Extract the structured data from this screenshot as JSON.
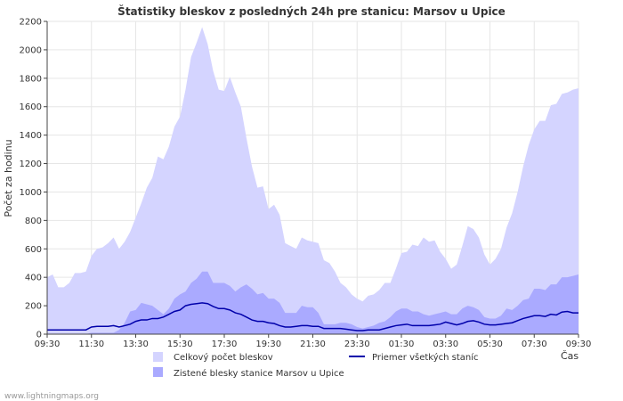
{
  "chart_data": {
    "type": "area",
    "title": "Štatistiky bleskov z posledných 24h pre stanicu: Marsov u Upice",
    "ylabel": "Počet za hodinu",
    "xlabel": "Čas",
    "ylim": [
      0,
      2200
    ],
    "yticks": [
      0,
      200,
      400,
      600,
      800,
      1000,
      1200,
      1400,
      1600,
      1800,
      2000,
      2200
    ],
    "xticks": [
      "09:30",
      "11:30",
      "13:30",
      "15:30",
      "17:30",
      "19:30",
      "21:30",
      "23:30",
      "01:30",
      "03:30",
      "05:30",
      "07:30",
      "09:30"
    ],
    "x_hours": [
      0,
      0.25,
      0.5,
      0.75,
      1,
      1.25,
      1.5,
      1.75,
      2,
      2.25,
      2.5,
      2.75,
      3,
      3.25,
      3.5,
      3.75,
      4,
      4.25,
      4.5,
      4.75,
      5,
      5.25,
      5.5,
      5.75,
      6,
      6.25,
      6.5,
      6.75,
      7,
      7.25,
      7.5,
      7.75,
      8,
      8.25,
      8.5,
      8.75,
      9,
      9.25,
      9.5,
      9.75,
      10,
      10.25,
      10.5,
      10.75,
      11,
      11.25,
      11.5,
      11.75,
      12,
      12.25,
      12.5,
      12.75,
      13,
      13.25,
      13.5,
      13.75,
      14,
      14.25,
      14.5,
      14.75,
      15,
      15.25,
      15.5,
      15.75,
      16,
      16.25,
      16.5,
      16.75,
      17,
      17.25,
      17.5,
      17.75,
      18,
      18.25,
      18.5,
      18.75,
      19,
      19.25,
      19.5,
      19.75,
      20,
      20.25,
      20.5,
      20.75,
      21,
      21.25,
      21.5,
      21.75,
      22,
      22.25,
      22.5,
      22.75,
      23,
      23.25,
      23.5,
      23.75,
      24
    ],
    "series": [
      {
        "name": "Celkový počet bleskov",
        "kind": "area",
        "color": "#d4d4ff",
        "values": [
          400,
          420,
          330,
          330,
          360,
          430,
          430,
          440,
          550,
          600,
          610,
          640,
          680,
          600,
          650,
          720,
          820,
          920,
          1030,
          1100,
          1250,
          1230,
          1320,
          1460,
          1530,
          1720,
          1950,
          2050,
          2160,
          2040,
          1850,
          1720,
          1710,
          1810,
          1700,
          1600,
          1380,
          1180,
          1030,
          1040,
          880,
          910,
          840,
          640,
          620,
          600,
          680,
          660,
          650,
          640,
          520,
          500,
          440,
          360,
          330,
          280,
          250,
          230,
          270,
          280,
          310,
          360,
          360,
          460,
          570,
          580,
          630,
          620,
          680,
          650,
          660,
          580,
          530,
          460,
          490,
          620,
          760,
          740,
          680,
          560,
          490,
          530,
          600,
          750,
          850,
          1000,
          1180,
          1330,
          1440,
          1500,
          1500,
          1610,
          1620,
          1690,
          1700,
          1720,
          1730
        ]
      },
      {
        "name": "Zistené blesky stanice Marsov u Upice",
        "kind": "area",
        "color": "#aaaaff",
        "values": [
          0,
          0,
          0,
          0,
          0,
          0,
          0,
          0,
          10,
          10,
          10,
          10,
          10,
          30,
          80,
          160,
          170,
          220,
          210,
          200,
          170,
          140,
          180,
          250,
          280,
          300,
          360,
          390,
          440,
          440,
          360,
          360,
          360,
          340,
          300,
          330,
          350,
          320,
          280,
          290,
          250,
          250,
          220,
          150,
          150,
          150,
          200,
          190,
          190,
          150,
          70,
          70,
          70,
          80,
          80,
          70,
          50,
          40,
          50,
          60,
          80,
          90,
          120,
          160,
          180,
          180,
          160,
          160,
          140,
          130,
          140,
          150,
          160,
          140,
          140,
          180,
          200,
          190,
          170,
          120,
          110,
          110,
          130,
          180,
          170,
          200,
          240,
          250,
          320,
          320,
          310,
          350,
          350,
          400,
          400,
          410,
          420
        ]
      },
      {
        "name": "Priemer všetkých staníc",
        "kind": "line",
        "color": "#0000aa",
        "values": [
          30,
          30,
          30,
          30,
          30,
          30,
          30,
          30,
          50,
          55,
          55,
          55,
          60,
          50,
          60,
          70,
          90,
          100,
          100,
          110,
          110,
          120,
          140,
          160,
          170,
          200,
          210,
          215,
          220,
          215,
          195,
          180,
          180,
          170,
          150,
          140,
          120,
          100,
          90,
          90,
          80,
          75,
          60,
          50,
          50,
          55,
          60,
          60,
          55,
          55,
          40,
          40,
          40,
          40,
          35,
          30,
          25,
          25,
          30,
          30,
          30,
          40,
          50,
          60,
          65,
          70,
          60,
          60,
          60,
          60,
          65,
          70,
          85,
          75,
          65,
          75,
          90,
          95,
          85,
          70,
          65,
          65,
          70,
          75,
          80,
          95,
          110,
          120,
          130,
          130,
          125,
          140,
          135,
          155,
          160,
          150,
          150
        ]
      }
    ],
    "legend_position": "bottom",
    "grid": true
  },
  "footer": {
    "source": "www.lightningmaps.org"
  }
}
